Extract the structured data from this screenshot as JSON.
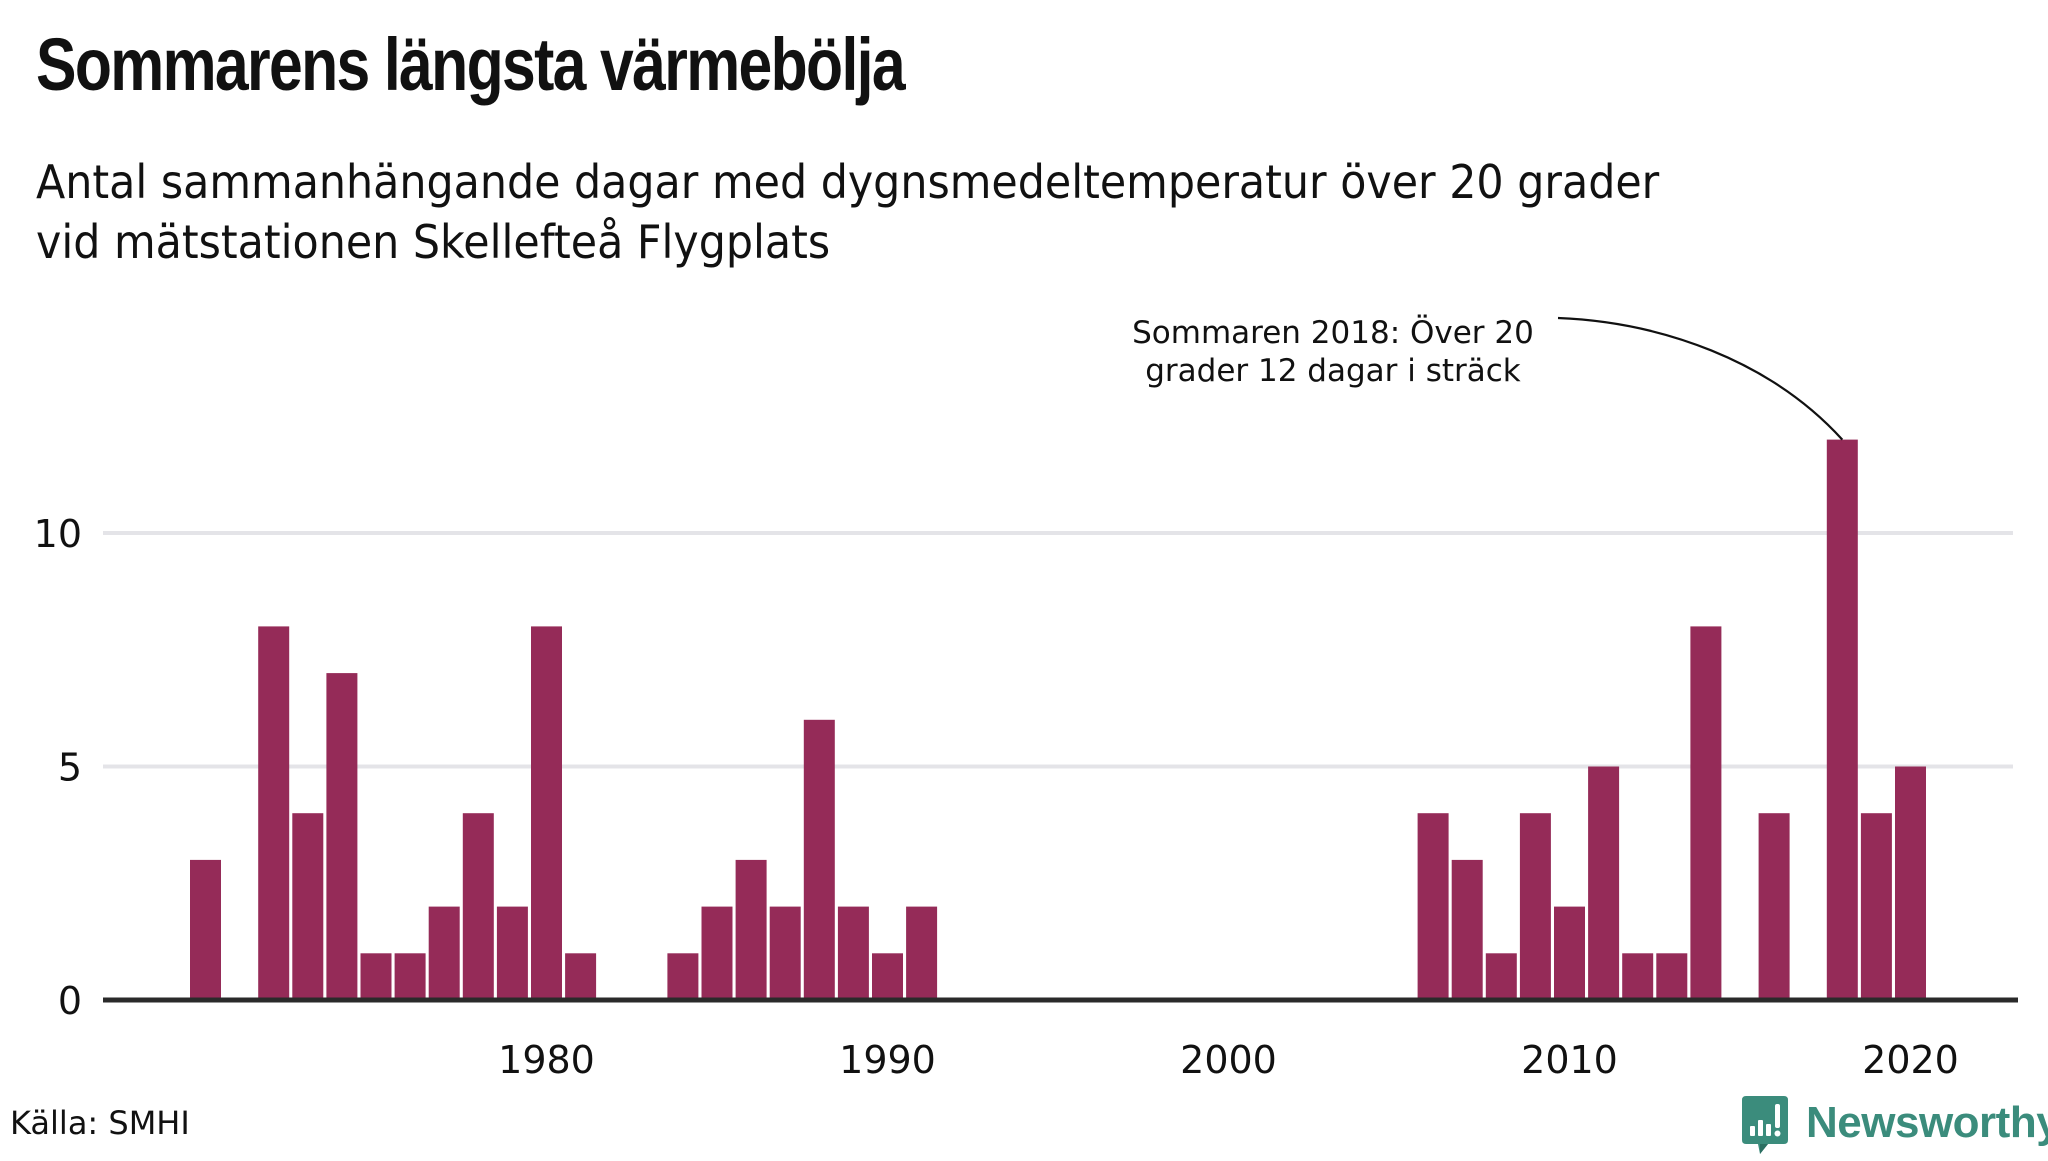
{
  "header": {
    "title": "Sommarens längsta värmebölja",
    "subtitle_lines": [
      "Antal sammanhängande dagar med dygnsmedeltemperatur över 20 grader",
      "vid mätstationen Skellefteå Flygplats"
    ]
  },
  "footer": {
    "source": "Källa: SMHI",
    "brand": "Newsworthy",
    "brand_icon": "chart-speech-bubble-icon"
  },
  "colors": {
    "bar": "#952b58",
    "grid": "#e4e4e8",
    "axis": "#2a2a2a",
    "brand": "#3b8c7c"
  },
  "chart_data": {
    "type": "bar",
    "title": "Sommarens längsta värmebölja",
    "subtitle": "Antal sammanhängande dagar med dygnsmedeltemperatur över 20 grader vid mätstationen Skellefteå Flygplats",
    "xlabel": "",
    "ylabel": "",
    "xlim": [
      1970,
      2021
    ],
    "ylim": [
      0,
      12
    ],
    "grid": true,
    "yticks": [
      0,
      5,
      10
    ],
    "xticks": [
      1980,
      1990,
      2000,
      2010,
      2020
    ],
    "categories": [
      1970,
      1971,
      1972,
      1973,
      1974,
      1975,
      1976,
      1977,
      1978,
      1979,
      1980,
      1981,
      1982,
      1983,
      1984,
      1985,
      1986,
      1987,
      1988,
      1989,
      1990,
      1991,
      1992,
      1993,
      1994,
      1995,
      1996,
      1997,
      1998,
      1999,
      2000,
      2001,
      2002,
      2003,
      2004,
      2005,
      2006,
      2007,
      2008,
      2009,
      2010,
      2011,
      2012,
      2013,
      2014,
      2015,
      2016,
      2017,
      2018,
      2019,
      2020
    ],
    "values": [
      3,
      0,
      8,
      4,
      7,
      1,
      1,
      2,
      4,
      2,
      8,
      1,
      0,
      0,
      1,
      2,
      3,
      2,
      6,
      2,
      1,
      2,
      0,
      0,
      0,
      0,
      0,
      0,
      0,
      0,
      0,
      0,
      0,
      0,
      0,
      0,
      4,
      3,
      1,
      4,
      2,
      5,
      1,
      1,
      8,
      0,
      4,
      0,
      12,
      4,
      5
    ],
    "annotation": {
      "year": 2018,
      "value": 12,
      "lines": [
        "Sommaren 2018: Över 20",
        "grader 12 dagar i sträck"
      ]
    },
    "source": "Källa: SMHI"
  }
}
